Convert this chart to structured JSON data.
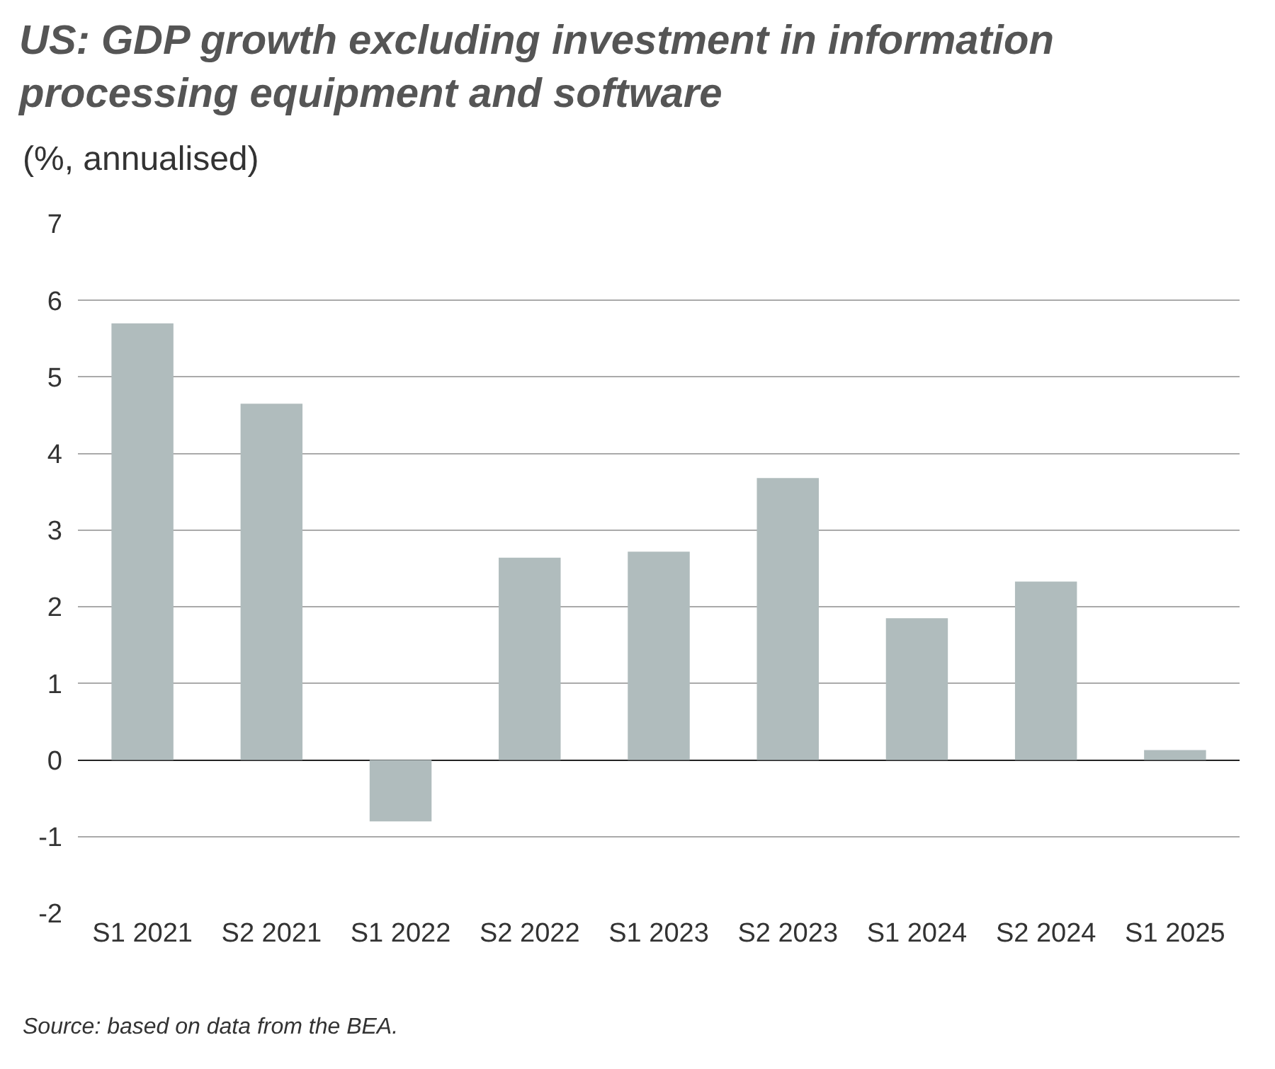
{
  "chart_data": {
    "type": "bar",
    "title": "US: GDP growth excluding investment in information processing equipment and software",
    "subtitle": "(%, annualised)",
    "categories": [
      "S1 2021",
      "S2 2021",
      "S1 2022",
      "S2 2022",
      "S1 2023",
      "S2 2023",
      "S1 2024",
      "S2 2024",
      "S1 2025"
    ],
    "values": [
      5.7,
      4.65,
      -0.8,
      2.64,
      2.72,
      3.68,
      1.85,
      2.33,
      0.13
    ],
    "color": "#b0bcbd",
    "ylim": [
      -2,
      7
    ],
    "yticks": [
      -2,
      -1,
      0,
      1,
      2,
      3,
      4,
      5,
      6,
      7
    ],
    "grid": "y",
    "annotations": [
      "Source: based on data from the BEA."
    ]
  }
}
